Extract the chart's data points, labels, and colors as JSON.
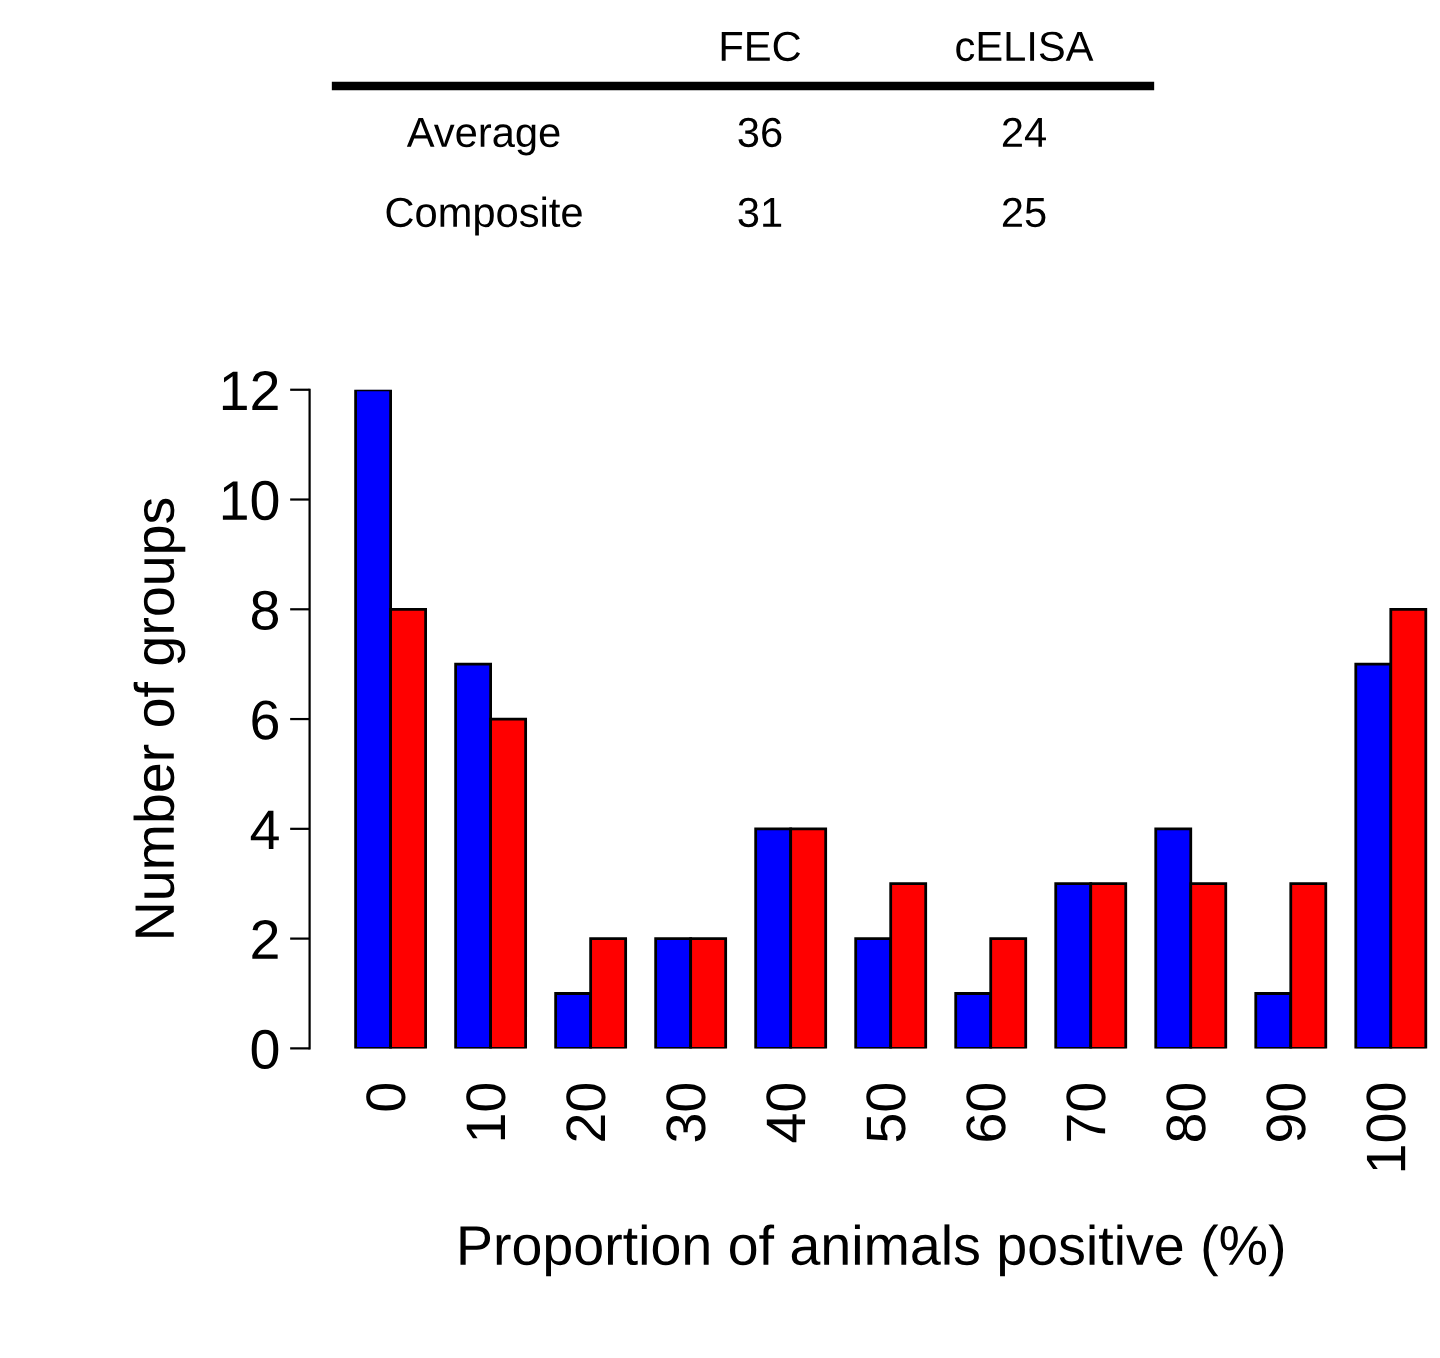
{
  "chart_data": {
    "type": "bar",
    "xlabel": "Proportion of animals positive (%)",
    "ylabel": "Number of groups",
    "categories": [
      "0",
      "10",
      "20",
      "30",
      "40",
      "50",
      "60",
      "70",
      "80",
      "90",
      "100"
    ],
    "series": [
      {
        "color": "#0000ff",
        "values": [
          12,
          7,
          1,
          2,
          4,
          2,
          1,
          3,
          4,
          1,
          7
        ]
      },
      {
        "color": "#ff0000",
        "values": [
          8,
          6,
          2,
          2,
          4,
          3,
          2,
          3,
          3,
          3,
          8
        ]
      }
    ],
    "ylim": [
      0,
      12
    ],
    "yticks": [
      0,
      2,
      4,
      6,
      8,
      10,
      12
    ],
    "grid": false,
    "legend": false,
    "annotations": [
      "FEC",
      "cELISA",
      "Average",
      "36",
      "24",
      "Composite",
      "31",
      "25"
    ]
  }
}
